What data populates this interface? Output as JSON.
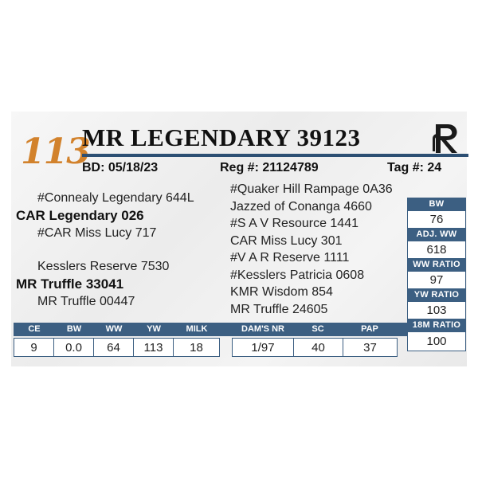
{
  "header": {
    "lot_number": "113",
    "name": "MR LEGENDARY 39123",
    "bd": "BD: 05/18/23",
    "reg": "Reg #: 21124789",
    "tag": "Tag #: 24",
    "logo_icon": "r-brand-logo-icon",
    "colors": {
      "accent_orange": "#d2822c",
      "navy": "#2c4f73",
      "label_blue": "#3c5f82"
    }
  },
  "pedigree": {
    "sire_sire": "#Connealy Legendary 644L",
    "sire": "CAR Legendary 026",
    "sire_dam": "#CAR Miss Lucy 717",
    "dam_sire": "Kesslers Reserve 7530",
    "dam": "MR Truffle 33041",
    "dam_dam": "MR Truffle 00447",
    "third_gen": [
      "#Quaker Hill Rampage 0A36",
      "Jazzed of Conanga 4660",
      "#S A V Resource 1441",
      "CAR Miss Lucy 301",
      "#V A R Reserve 1111",
      "#Kesslers Patricia 0608",
      "KMR Wisdom 854",
      "MR Truffle 24605"
    ]
  },
  "side_stats": [
    {
      "label": "BW",
      "value": "76"
    },
    {
      "label": "ADJ. WW",
      "value": "618"
    },
    {
      "label": "WW RATIO",
      "value": "97"
    },
    {
      "label": "YW RATIO",
      "value": "103"
    },
    {
      "label": "18M RATIO",
      "value": "100"
    }
  ],
  "epds": {
    "headers": [
      "CE",
      "BW",
      "WW",
      "YW",
      "MILK"
    ],
    "values": [
      "9",
      "0.0",
      "64",
      "113",
      "18"
    ]
  },
  "dam_stats": {
    "headers": [
      "DAM'S NR",
      "SC",
      "PAP"
    ],
    "values": [
      "1/97",
      "40",
      "37"
    ]
  }
}
